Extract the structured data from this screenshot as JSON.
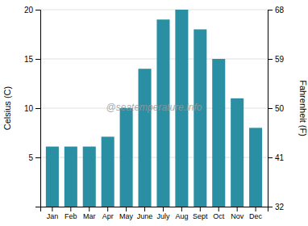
{
  "chart_data": {
    "type": "bar",
    "categories": [
      "Jan",
      "Feb",
      "Mar",
      "Apr",
      "May",
      "June",
      "July",
      "Aug",
      "Sept",
      "Oct",
      "Nov",
      "Dec"
    ],
    "values": [
      6.1,
      6.1,
      6.1,
      7.1,
      10.0,
      14.0,
      19.0,
      20.0,
      18.0,
      15.0,
      11.0,
      8.0
    ],
    "color": "#2b8fa3",
    "ylabel": "Celsius (C)",
    "y2label": "Fahrenheit (F)",
    "annotation": "@seatemperature.info",
    "ylim": [
      0,
      20
    ],
    "yticks": [
      5,
      10,
      15,
      20
    ],
    "y2lim": [
      32,
      68
    ],
    "y2ticks": [
      32,
      41,
      50,
      59,
      68
    ],
    "grid": true
  }
}
